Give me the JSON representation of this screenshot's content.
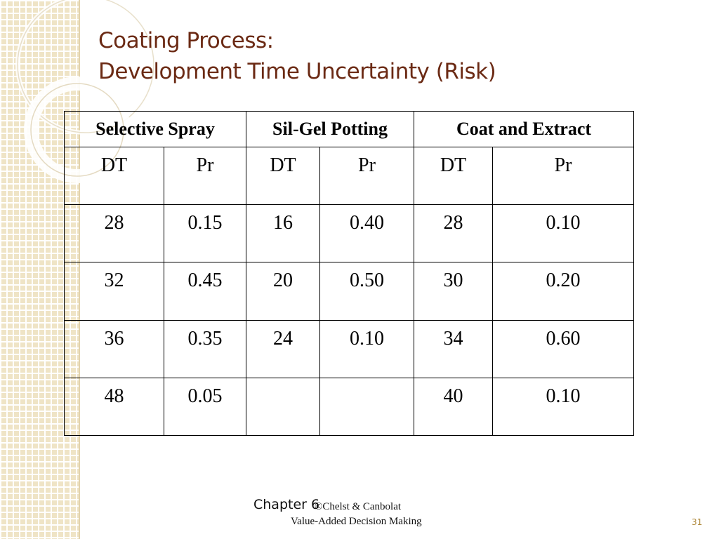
{
  "slide": {
    "title_line1": "Coating Process:",
    "title_line2": "Development Time Uncertainty (Risk)"
  },
  "table": {
    "groups": [
      "Selective Spray",
      "Sil-Gel Potting",
      "Coat and Extract"
    ],
    "subheaders": [
      "DT",
      "Pr",
      "DT",
      "Pr",
      "DT",
      "Pr"
    ],
    "rows": [
      [
        "28",
        "0.15",
        "16",
        "0.40",
        "28",
        "0.10"
      ],
      [
        "32",
        "0.45",
        "20",
        "0.50",
        "30",
        "0.20"
      ],
      [
        "36",
        "0.35",
        "24",
        "0.10",
        "34",
        "0.60"
      ],
      [
        "48",
        "0.05",
        "",
        "",
        "40",
        "0.10"
      ]
    ]
  },
  "footer": {
    "chapter": "Chapter 6",
    "authors": "©Chelst & Canbolat",
    "book": "Value-Added Decision Making",
    "page_number": "31"
  },
  "colors": {
    "title": "#6b2a14",
    "band": "#efe4c6",
    "page_number": "#b08a3e"
  }
}
